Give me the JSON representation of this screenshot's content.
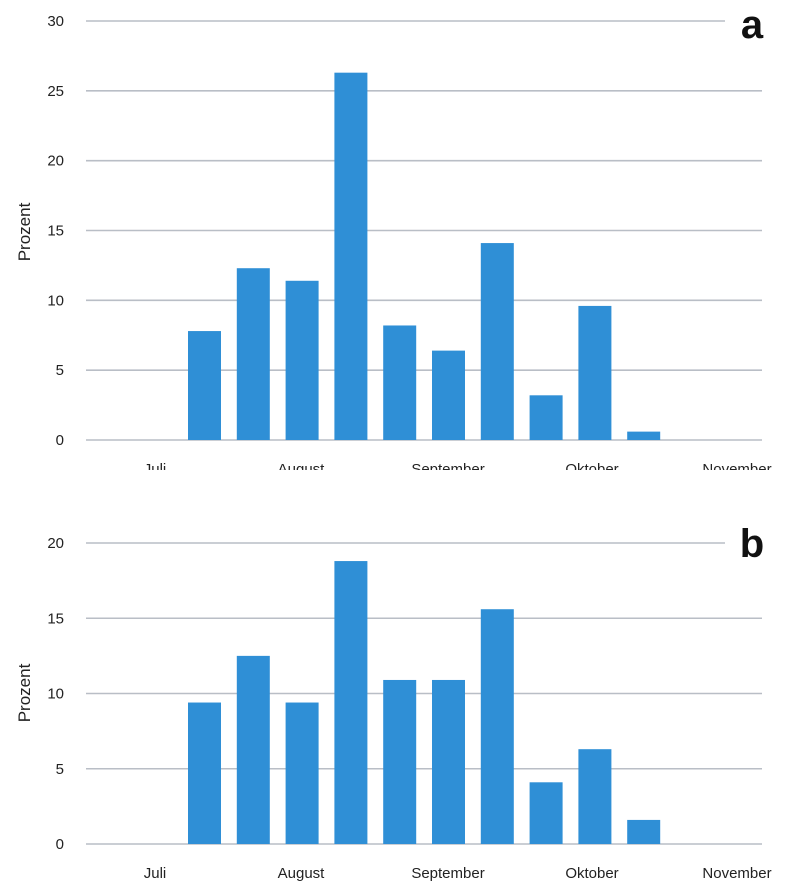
{
  "colors": {
    "bar": "#2f8fd6",
    "grid": "#b9bec6"
  },
  "chart_data": [
    {
      "type": "bar",
      "panel_label": "a",
      "ylabel": "Prozent",
      "ylim": [
        0,
        30
      ],
      "yticks": [
        0,
        5,
        10,
        15,
        20,
        25,
        30
      ],
      "xtick_labels": [
        "Juli",
        "August",
        "September",
        "Oktober",
        "November"
      ],
      "grid": true,
      "values": [
        7.8,
        12.3,
        11.4,
        26.3,
        8.2,
        6.4,
        14.1,
        3.2,
        9.6,
        0.6
      ]
    },
    {
      "type": "bar",
      "panel_label": "b",
      "ylabel": "Prozent",
      "ylim": [
        0,
        20
      ],
      "yticks": [
        0,
        5,
        10,
        15,
        20
      ],
      "xtick_labels": [
        "Juli",
        "August",
        "September",
        "Oktober",
        "November"
      ],
      "grid": true,
      "values": [
        9.4,
        12.5,
        9.4,
        18.8,
        10.9,
        10.9,
        15.6,
        4.1,
        6.3,
        1.6
      ]
    }
  ]
}
